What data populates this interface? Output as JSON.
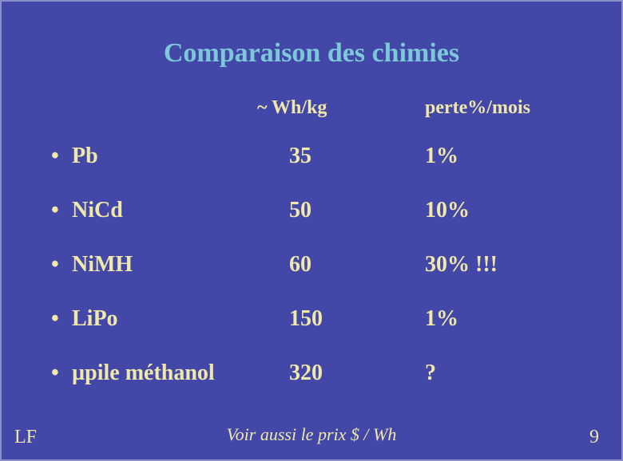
{
  "slide": {
    "background_color": "#4247a8",
    "border_color": "#8a8fc8",
    "title": {
      "text": "Comparaison des chimies",
      "color": "#7cc8d8",
      "fontsize": 34
    },
    "headers": {
      "whkg": "~ Wh/kg",
      "perte": "perte%/mois",
      "color": "#efe8a8",
      "fontsize": 24
    },
    "body": {
      "color": "#efe8a8",
      "fontsize": 28,
      "row_gap": 68,
      "bullet": "•"
    },
    "rows": [
      {
        "name": "Pb",
        "whkg": "35",
        "perte": "1%"
      },
      {
        "name": "NiCd",
        "whkg": "50",
        "perte": "10%"
      },
      {
        "name": "NiMH",
        "whkg": "60",
        "perte": "30% !!!"
      },
      {
        "name": "LiPo",
        "whkg": "150",
        "perte": "1%"
      },
      {
        "name": "µpile méthanol",
        "whkg": "320",
        "perte": "?"
      }
    ],
    "footnote": {
      "text": "Voir aussi le prix $ / Wh",
      "color": "#efe8a8",
      "fontsize": 22
    },
    "author": {
      "text": "LF",
      "color": "#efe8a8",
      "fontsize": 24
    },
    "page": {
      "text": "9",
      "color": "#efe8a8",
      "fontsize": 24
    }
  }
}
